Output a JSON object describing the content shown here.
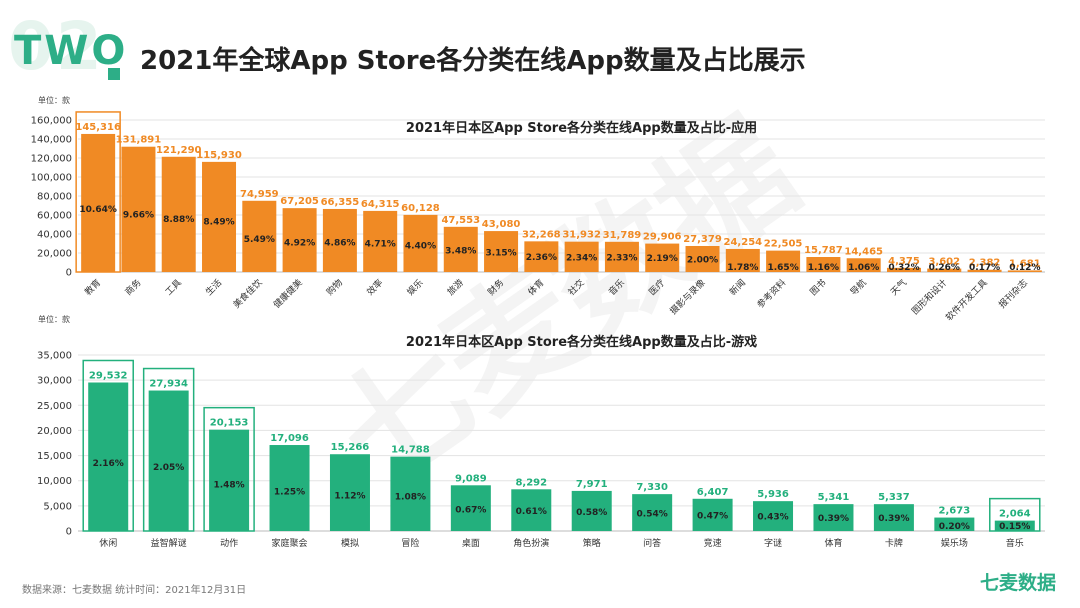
{
  "header": {
    "section_number": "02",
    "section_word": "TWO",
    "title": "2021年全球App Store各分类在线App数量及占比展示"
  },
  "footer": {
    "source": "数据来源：七麦数据   统计时间：2021年12月31日",
    "brand": "七麦数据"
  },
  "watermark": "七麦数据",
  "colors": {
    "apps": "#f08a24",
    "games": "#23b07d",
    "highlight_apps": "#f08a24",
    "highlight_games": "#23b07d"
  },
  "chart_data": [
    {
      "type": "bar",
      "title": "2021年日本区App Store各分类在线App数量及占比-应用",
      "unit_label": "单位：款",
      "ylim": [
        0,
        160000
      ],
      "yticks": [
        "0",
        "20,000",
        "40,000",
        "60,000",
        "80,000",
        "100,000",
        "120,000",
        "140,000",
        "160,000"
      ],
      "categories": [
        "教育",
        "商务",
        "工具",
        "生活",
        "美食佳饮",
        "健康健美",
        "购物",
        "效率",
        "娱乐",
        "旅游",
        "财务",
        "体育",
        "社交",
        "音乐",
        "医疗",
        "摄影与录像",
        "新闻",
        "参考资料",
        "图书",
        "导航",
        "天气",
        "图形和设计",
        "软件开发工具",
        "报刊杂志"
      ],
      "values": [
        145316,
        131891,
        121290,
        115930,
        74959,
        67205,
        66355,
        64315,
        60128,
        47553,
        43080,
        32268,
        31932,
        31789,
        29906,
        27379,
        24254,
        22505,
        15787,
        14465,
        4375,
        3602,
        2382,
        1681
      ],
      "value_labels": [
        "145,316",
        "131,891",
        "121,290",
        "115,930",
        "74,959",
        "67,205",
        "66,355",
        "64,315",
        "60,128",
        "47,553",
        "43,080",
        "32,268",
        "31,932",
        "31,789",
        "29,906",
        "27,379",
        "24,254",
        "22,505",
        "15,787",
        "14,465",
        "4,375",
        "3,602",
        "2,382",
        "1,681"
      ],
      "percentages": [
        "10.64%",
        "9.66%",
        "8.88%",
        "8.49%",
        "5.49%",
        "4.92%",
        "4.86%",
        "4.71%",
        "4.40%",
        "3.48%",
        "3.15%",
        "2.36%",
        "2.34%",
        "2.33%",
        "2.19%",
        "2.00%",
        "1.78%",
        "1.65%",
        "1.16%",
        "1.06%",
        "0.32%",
        "0.26%",
        "0.17%",
        "0.12%"
      ],
      "highlighted": [
        "教育"
      ],
      "grid": true
    },
    {
      "type": "bar",
      "title": "2021年日本区App Store各分类在线App数量及占比-游戏",
      "unit_label": "单位：款",
      "ylim": [
        0,
        35000
      ],
      "yticks": [
        "0",
        "5,000",
        "10,000",
        "15,000",
        "20,000",
        "25,000",
        "30,000",
        "35,000"
      ],
      "categories": [
        "休闲",
        "益智解谜",
        "动作",
        "家庭聚会",
        "模拟",
        "冒险",
        "桌面",
        "角色扮演",
        "策略",
        "问答",
        "竞速",
        "字谜",
        "体育",
        "卡牌",
        "娱乐场",
        "音乐"
      ],
      "values": [
        29532,
        27934,
        20153,
        17096,
        15266,
        14788,
        9089,
        8292,
        7971,
        7330,
        6407,
        5936,
        5341,
        5337,
        2673,
        2064
      ],
      "value_labels": [
        "29,532",
        "27,934",
        "20,153",
        "17,096",
        "15,266",
        "14,788",
        "9,089",
        "8,292",
        "7,971",
        "7,330",
        "6,407",
        "5,936",
        "5,341",
        "5,337",
        "2,673",
        "2,064"
      ],
      "percentages": [
        "2.16%",
        "2.05%",
        "1.48%",
        "1.25%",
        "1.12%",
        "1.08%",
        "0.67%",
        "0.61%",
        "0.58%",
        "0.54%",
        "0.47%",
        "0.43%",
        "0.39%",
        "0.39%",
        "0.20%",
        "0.15%"
      ],
      "highlighted": [
        "休闲",
        "益智解谜",
        "动作",
        "音乐"
      ],
      "grid": true
    }
  ]
}
